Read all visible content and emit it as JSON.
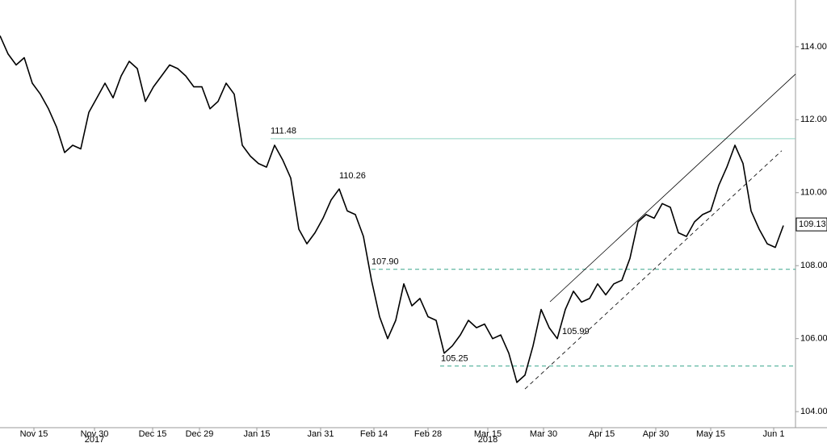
{
  "chart_data": {
    "type": "line",
    "x": [
      0,
      1,
      2,
      3,
      4,
      5,
      6,
      7,
      8,
      9,
      10,
      11,
      12,
      13,
      14,
      15,
      16,
      17,
      18,
      19,
      20,
      21,
      22,
      23,
      24,
      25,
      26,
      27,
      28,
      29,
      30,
      31,
      32,
      33,
      34,
      35,
      36,
      37,
      38,
      39,
      40,
      41,
      42,
      43,
      44,
      45,
      46,
      47,
      48,
      49,
      50,
      51,
      52,
      53,
      54,
      55,
      56,
      57,
      58,
      59,
      60,
      61,
      62,
      63,
      64,
      65,
      66,
      67,
      68,
      69,
      70,
      71,
      72,
      73,
      74,
      75,
      76,
      77,
      78,
      79,
      80,
      81,
      82,
      83,
      84,
      85,
      86,
      87,
      88,
      89,
      90,
      91,
      92,
      93,
      94,
      95,
      96,
      97
    ],
    "series": [
      {
        "color": "#000000",
        "values": [
          114.3,
          113.8,
          113.5,
          113.7,
          113.0,
          112.7,
          112.3,
          111.8,
          111.1,
          111.3,
          111.2,
          112.2,
          112.6,
          113.0,
          112.6,
          113.2,
          113.6,
          113.4,
          112.5,
          112.9,
          113.2,
          113.5,
          113.4,
          113.2,
          112.9,
          112.9,
          112.3,
          112.5,
          113.0,
          112.7,
          111.3,
          111.0,
          110.8,
          110.7,
          111.3,
          110.9,
          110.4,
          109.0,
          108.6,
          108.9,
          109.3,
          109.8,
          110.1,
          109.5,
          109.4,
          108.8,
          107.6,
          106.6,
          106.0,
          106.5,
          107.5,
          106.9,
          107.1,
          106.6,
          106.5,
          105.6,
          105.8,
          106.1,
          106.5,
          106.3,
          106.4,
          106.0,
          106.1,
          105.6,
          104.8,
          105.0,
          105.8,
          106.8,
          106.3,
          106.0,
          106.8,
          107.3,
          107.0,
          107.1,
          107.5,
          107.2,
          107.5,
          107.6,
          108.2,
          109.2,
          109.4,
          109.3,
          109.7,
          109.6,
          108.9,
          108.8,
          109.2,
          109.4,
          109.5,
          110.2,
          110.7,
          111.3,
          110.8,
          109.5,
          109.0,
          108.6,
          108.5,
          109.1
        ]
      }
    ],
    "xlim": [
      0,
      98.5
    ],
    "xticks": [
      {
        "value": 4.2,
        "label": "Nov 15"
      },
      {
        "value": 11.7,
        "label": "Nov 30"
      },
      {
        "value": 18.9,
        "label": "Dec 15"
      },
      {
        "value": 24.7,
        "label": "Dec 29"
      },
      {
        "value": 31.8,
        "label": "Jan 15"
      },
      {
        "value": 39.7,
        "label": "Jan 31"
      },
      {
        "value": 46.3,
        "label": "Feb 14"
      },
      {
        "value": 53,
        "label": "Feb 28"
      },
      {
        "value": 60.4,
        "label": "Mar 15"
      },
      {
        "value": 67.3,
        "label": "Mar 30"
      },
      {
        "value": 74.5,
        "label": "Apr 15"
      },
      {
        "value": 81.2,
        "label": "Apr 30"
      },
      {
        "value": 88,
        "label": "May 15"
      },
      {
        "value": 95.8,
        "label": "Jun 1"
      }
    ],
    "year_labels": [
      {
        "value": 11.7,
        "label": "2017"
      },
      {
        "value": 60.4,
        "label": "2018"
      }
    ],
    "ylim": [
      103.56,
      115.28
    ],
    "yticks": [
      {
        "value": 104,
        "label": "104.00"
      },
      {
        "value": 106,
        "label": "106.00"
      },
      {
        "value": 108,
        "label": "108.00"
      },
      {
        "value": 110,
        "label": "110.00"
      },
      {
        "value": 112,
        "label": "112.00"
      },
      {
        "value": 114,
        "label": "114.00"
      }
    ],
    "last_price": 109.13,
    "levels": [
      {
        "value": 111.48,
        "style": "solid",
        "color": "#8fd3c3",
        "x_start": 33.5
      },
      {
        "value": 107.9,
        "style": "dashed",
        "color": "#3aa68c",
        "x_start": 46
      },
      {
        "value": 105.25,
        "style": "dashed",
        "color": "#3aa68c",
        "x_start": 54.5
      }
    ],
    "annotations": [
      {
        "x": 33.5,
        "value": 111.48
      },
      {
        "x": 42,
        "value": 110.26
      },
      {
        "x": 46,
        "value": 107.9,
        "label": "107.90"
      },
      {
        "x": 54.6,
        "value": 105.25
      },
      {
        "x": 69.6,
        "value": 105.99
      }
    ],
    "trend_lines": [
      {
        "style": "solid",
        "x": [
          68.1,
          98.5
        ],
        "values": [
          107.01,
          113.25
        ]
      },
      {
        "style": "dashed",
        "x": [
          65,
          96.8
        ],
        "values": [
          104.62,
          111.15
        ]
      }
    ]
  }
}
